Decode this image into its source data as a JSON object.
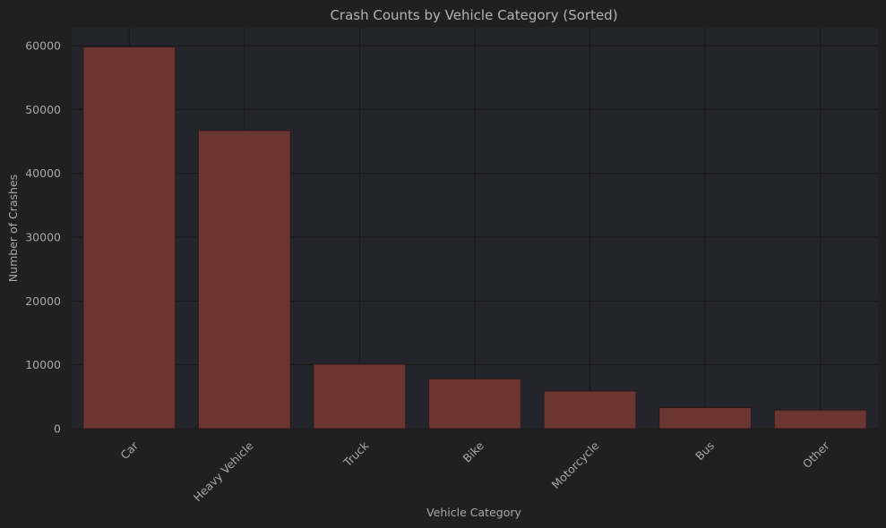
{
  "chart_data": {
    "type": "bar",
    "title": "Crash Counts by Vehicle Category (Sorted)",
    "xlabel": "Vehicle Category",
    "ylabel": "Number of Crashes",
    "categories": [
      "Car",
      "Heavy Vehicle",
      "Truck",
      "Bike",
      "Motorcycle",
      "Bus",
      "Other"
    ],
    "values": [
      59800,
      46700,
      10100,
      7800,
      5900,
      3300,
      2900
    ],
    "ylim": [
      0,
      62800
    ],
    "yticks": [
      0,
      10000,
      20000,
      30000,
      40000,
      50000,
      60000
    ],
    "grid": true,
    "colors": {
      "figure_background": "#202020",
      "plot_background": "#24242d",
      "bar_fill": "#6b3532",
      "bar_edge": "#2a1a18",
      "grid": "#181818",
      "text": "#a8a8a8"
    }
  }
}
